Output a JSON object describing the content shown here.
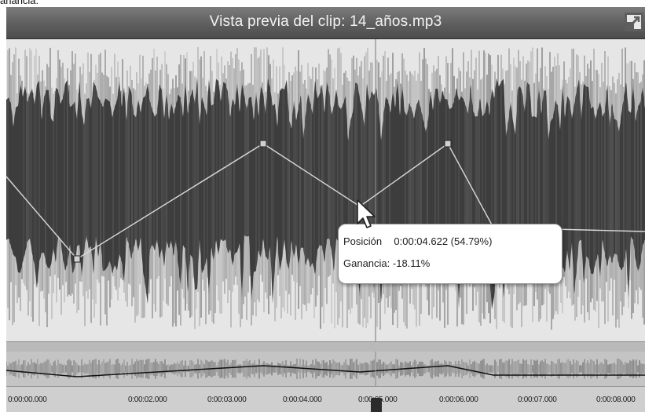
{
  "top_fragment": "anancia:",
  "window": {
    "title": "Vista previa del clip: 14_años.mp3",
    "resize_icon": "resize-icon"
  },
  "tooltip": {
    "position_label": "Posición",
    "position_value": "0:00:04.622 (54.79%)",
    "gain_label": "Ganancia:",
    "gain_value": "-18.11%"
  },
  "ruler": {
    "ticks": [
      "0:00:00.000",
      "0:00:02.000",
      "0:00:03.000",
      "0:00:04.000",
      "0:00:05.000",
      "0:00:06.000",
      "0:00:07.000",
      "0:00:08.000"
    ]
  },
  "colors": {
    "waveform": "#3d3d3d",
    "waveform_light": "#6a6a6a",
    "background": "#e6e6e6",
    "envelope": "#d9d9d9",
    "titlebar": "#5e5e5e"
  }
}
